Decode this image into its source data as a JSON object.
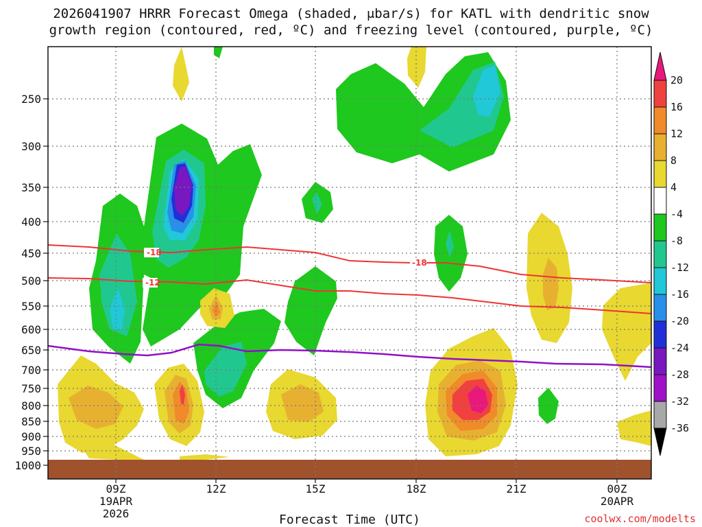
{
  "title": {
    "line1": "2026041907 HRRR Forecast Omega (shaded, μbar/s) for KATL with dendritic snow",
    "line2": "growth region (contoured, red, ºC) and freezing level (contoured, purple, ºC)"
  },
  "chart_data": {
    "type": "time-height cross section",
    "title": "2026041907 HRRR Forecast Omega (shaded, μbar/s) for KATL with dendritic snow growth region (contoured, red, ºC) and freezing level (contoured, purple, ºC)",
    "xlabel": "Forecast Time (UTC)",
    "ylabel": "",
    "y_ticks": [
      "250",
      "300",
      "350",
      "400",
      "450",
      "500",
      "550",
      "600",
      "650",
      "700",
      "750",
      "800",
      "850",
      "900",
      "950",
      "1000"
    ],
    "x_ticks": [
      {
        "label": "09Z",
        "date": "19APR",
        "year": "2026"
      },
      {
        "label": "12Z",
        "date": "",
        "year": ""
      },
      {
        "label": "15Z",
        "date": "",
        "year": ""
      },
      {
        "label": "18Z",
        "date": "",
        "year": ""
      },
      {
        "label": "21Z",
        "date": "",
        "year": ""
      },
      {
        "label": "00Z",
        "date": "20APR",
        "year": ""
      }
    ],
    "colorbar": {
      "labels": [
        "20",
        "16",
        "12",
        "8",
        "4",
        "-4",
        "-8",
        "-12",
        "-16",
        "-20",
        "-24",
        "-28",
        "-32",
        "-36"
      ],
      "colors": [
        "#e8197a",
        "#f04040",
        "#f08a2a",
        "#e8b030",
        "#e8d830",
        "#ffffff",
        "#1ec81e",
        "#20c890",
        "#20c8d8",
        "#2890e8",
        "#2030d8",
        "#7818c0",
        "#a010c8",
        "#a8a8a8",
        "#000000"
      ]
    },
    "contours": [
      {
        "name": "dgz-top",
        "label": "-18",
        "color": "#ee3333"
      },
      {
        "name": "dgz-bottom",
        "label": "-12",
        "color": "#ee3333"
      },
      {
        "name": "freezing-level",
        "label": "",
        "color": "#9010c8"
      }
    ],
    "surface_color": "#a0522d"
  },
  "credit": "coolwx.com/modelts"
}
